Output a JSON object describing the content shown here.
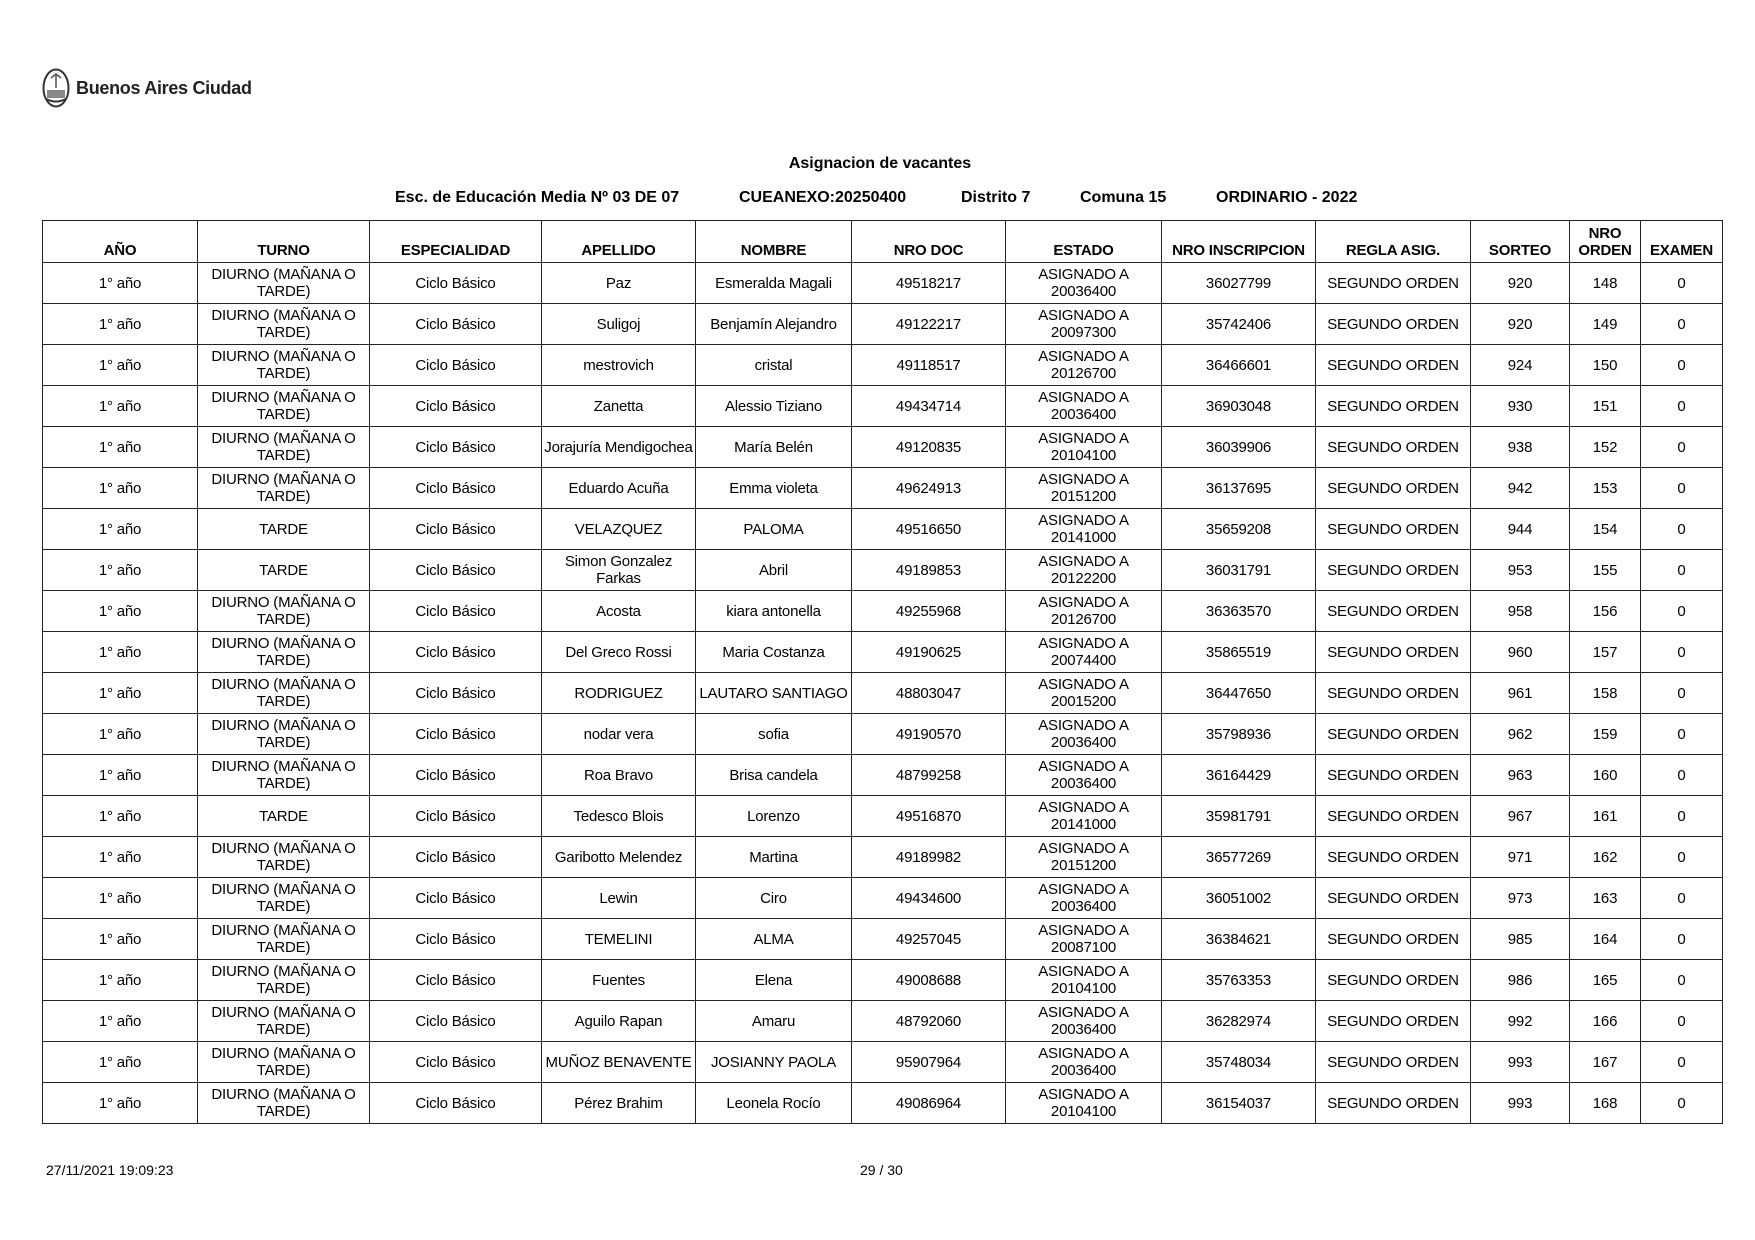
{
  "header": {
    "logo_text": "Buenos Aires Ciudad"
  },
  "report": {
    "title": "Asignacion de vacantes",
    "school": "Esc. de Educación Media Nº 03 DE 07",
    "cueanexo": "CUEANEXO:20250400",
    "distrito": "Distrito 7",
    "comuna": "Comuna 15",
    "period": "ORDINARIO - 2022"
  },
  "table": {
    "columns": [
      "AÑO",
      "TURNO",
      "ESPECIALIDAD",
      "APELLIDO",
      "NOMBRE",
      "NRO DOC",
      "ESTADO",
      "NRO INSCRIPCION",
      "REGLA ASIG.",
      "SORTEO",
      "NRO ORDEN",
      "EXAMEN"
    ],
    "rows": [
      [
        "1° año",
        "DIURNO (MAÑANA O TARDE)",
        "Ciclo Básico",
        "Paz",
        "Esmeralda Magali",
        "49518217",
        "ASIGNADO A 20036400",
        "36027799",
        "SEGUNDO ORDEN",
        "920",
        "148",
        "0"
      ],
      [
        "1° año",
        "DIURNO (MAÑANA O TARDE)",
        "Ciclo Básico",
        "Suligoj",
        "Benjamín Alejandro",
        "49122217",
        "ASIGNADO A 20097300",
        "35742406",
        "SEGUNDO ORDEN",
        "920",
        "149",
        "0"
      ],
      [
        "1° año",
        "DIURNO (MAÑANA O TARDE)",
        "Ciclo Básico",
        "mestrovich",
        "cristal",
        "49118517",
        "ASIGNADO A 20126700",
        "36466601",
        "SEGUNDO ORDEN",
        "924",
        "150",
        "0"
      ],
      [
        "1° año",
        "DIURNO (MAÑANA O TARDE)",
        "Ciclo Básico",
        "Zanetta",
        "Alessio Tiziano",
        "49434714",
        "ASIGNADO A 20036400",
        "36903048",
        "SEGUNDO ORDEN",
        "930",
        "151",
        "0"
      ],
      [
        "1° año",
        "DIURNO (MAÑANA O TARDE)",
        "Ciclo Básico",
        "Jorajuría Mendigochea",
        "María Belén",
        "49120835",
        "ASIGNADO A 20104100",
        "36039906",
        "SEGUNDO ORDEN",
        "938",
        "152",
        "0"
      ],
      [
        "1° año",
        "DIURNO (MAÑANA O TARDE)",
        "Ciclo Básico",
        "Eduardo Acuña",
        "Emma violeta",
        "49624913",
        "ASIGNADO A 20151200",
        "36137695",
        "SEGUNDO ORDEN",
        "942",
        "153",
        "0"
      ],
      [
        "1° año",
        "TARDE",
        "Ciclo Básico",
        "VELAZQUEZ",
        "PALOMA",
        "49516650",
        "ASIGNADO A 20141000",
        "35659208",
        "SEGUNDO ORDEN",
        "944",
        "154",
        "0"
      ],
      [
        "1° año",
        "TARDE",
        "Ciclo Básico",
        "Simon Gonzalez Farkas",
        "Abril",
        "49189853",
        "ASIGNADO A 20122200",
        "36031791",
        "SEGUNDO ORDEN",
        "953",
        "155",
        "0"
      ],
      [
        "1° año",
        "DIURNO (MAÑANA O TARDE)",
        "Ciclo Básico",
        "Acosta",
        "kiara antonella",
        "49255968",
        "ASIGNADO A 20126700",
        "36363570",
        "SEGUNDO ORDEN",
        "958",
        "156",
        "0"
      ],
      [
        "1° año",
        "DIURNO (MAÑANA O TARDE)",
        "Ciclo Básico",
        "Del Greco Rossi",
        "Maria Costanza",
        "49190625",
        "ASIGNADO A 20074400",
        "35865519",
        "SEGUNDO ORDEN",
        "960",
        "157",
        "0"
      ],
      [
        "1° año",
        "DIURNO (MAÑANA O TARDE)",
        "Ciclo Básico",
        "RODRIGUEZ",
        "LAUTARO SANTIAGO",
        "48803047",
        "ASIGNADO A 20015200",
        "36447650",
        "SEGUNDO ORDEN",
        "961",
        "158",
        "0"
      ],
      [
        "1° año",
        "DIURNO (MAÑANA O TARDE)",
        "Ciclo Básico",
        "nodar vera",
        "sofia",
        "49190570",
        "ASIGNADO A 20036400",
        "35798936",
        "SEGUNDO ORDEN",
        "962",
        "159",
        "0"
      ],
      [
        "1° año",
        "DIURNO (MAÑANA O TARDE)",
        "Ciclo Básico",
        "Roa Bravo",
        "Brisa candela",
        "48799258",
        "ASIGNADO A 20036400",
        "36164429",
        "SEGUNDO ORDEN",
        "963",
        "160",
        "0"
      ],
      [
        "1° año",
        "TARDE",
        "Ciclo Básico",
        "Tedesco Blois",
        "Lorenzo",
        "49516870",
        "ASIGNADO A 20141000",
        "35981791",
        "SEGUNDO ORDEN",
        "967",
        "161",
        "0"
      ],
      [
        "1° año",
        "DIURNO (MAÑANA O TARDE)",
        "Ciclo Básico",
        "Garibotto Melendez",
        "Martina",
        "49189982",
        "ASIGNADO A 20151200",
        "36577269",
        "SEGUNDO ORDEN",
        "971",
        "162",
        "0"
      ],
      [
        "1° año",
        "DIURNO (MAÑANA O TARDE)",
        "Ciclo Básico",
        "Lewin",
        "Ciro",
        "49434600",
        "ASIGNADO A 20036400",
        "36051002",
        "SEGUNDO ORDEN",
        "973",
        "163",
        "0"
      ],
      [
        "1° año",
        "DIURNO (MAÑANA O TARDE)",
        "Ciclo Básico",
        "TEMELINI",
        "ALMA",
        "49257045",
        "ASIGNADO A 20087100",
        "36384621",
        "SEGUNDO ORDEN",
        "985",
        "164",
        "0"
      ],
      [
        "1° año",
        "DIURNO (MAÑANA O TARDE)",
        "Ciclo Básico",
        "Fuentes",
        "Elena",
        "49008688",
        "ASIGNADO A 20104100",
        "35763353",
        "SEGUNDO ORDEN",
        "986",
        "165",
        "0"
      ],
      [
        "1° año",
        "DIURNO (MAÑANA O TARDE)",
        "Ciclo Básico",
        "Aguilo Rapan",
        "Amaru",
        "48792060",
        "ASIGNADO A 20036400",
        "36282974",
        "SEGUNDO ORDEN",
        "992",
        "166",
        "0"
      ],
      [
        "1° año",
        "DIURNO (MAÑANA O TARDE)",
        "Ciclo Básico",
        "MUÑOZ BENAVENTE",
        "JOSIANNY PAOLA",
        "95907964",
        "ASIGNADO A 20036400",
        "35748034",
        "SEGUNDO ORDEN",
        "993",
        "167",
        "0"
      ],
      [
        "1° año",
        "DIURNO (MAÑANA O TARDE)",
        "Ciclo Básico",
        "Pérez Brahim",
        "Leonela Rocío",
        "49086964",
        "ASIGNADO A 20104100",
        "36154037",
        "SEGUNDO ORDEN",
        "993",
        "168",
        "0"
      ]
    ]
  },
  "footer": {
    "timestamp": "27/11/2021 19:09:23",
    "page": "29  / 30"
  }
}
